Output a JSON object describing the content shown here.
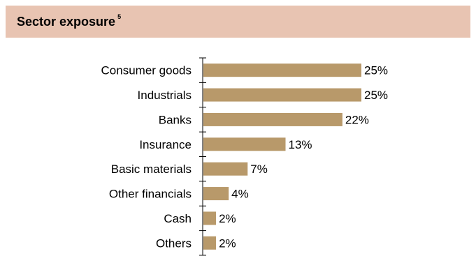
{
  "header": {
    "title": "Sector exposure",
    "footnote": "5"
  },
  "colors": {
    "header_bg": "#e8c4b2",
    "bar": "#b8996a",
    "axis": "#000000"
  },
  "chart_data": {
    "type": "bar",
    "orientation": "horizontal",
    "title": "Sector exposure",
    "xlabel": "",
    "ylabel": "",
    "categories": [
      "Consumer goods",
      "Industrials",
      "Banks",
      "Insurance",
      "Basic materials",
      "Other financials",
      "Cash",
      "Others"
    ],
    "values": [
      25,
      25,
      22,
      13,
      7,
      4,
      2,
      2
    ],
    "value_labels": [
      "25%",
      "25%",
      "22%",
      "13%",
      "7%",
      "4%",
      "2%",
      "2%"
    ],
    "xlim": [
      0,
      25
    ],
    "grid": false,
    "legend": "none"
  }
}
